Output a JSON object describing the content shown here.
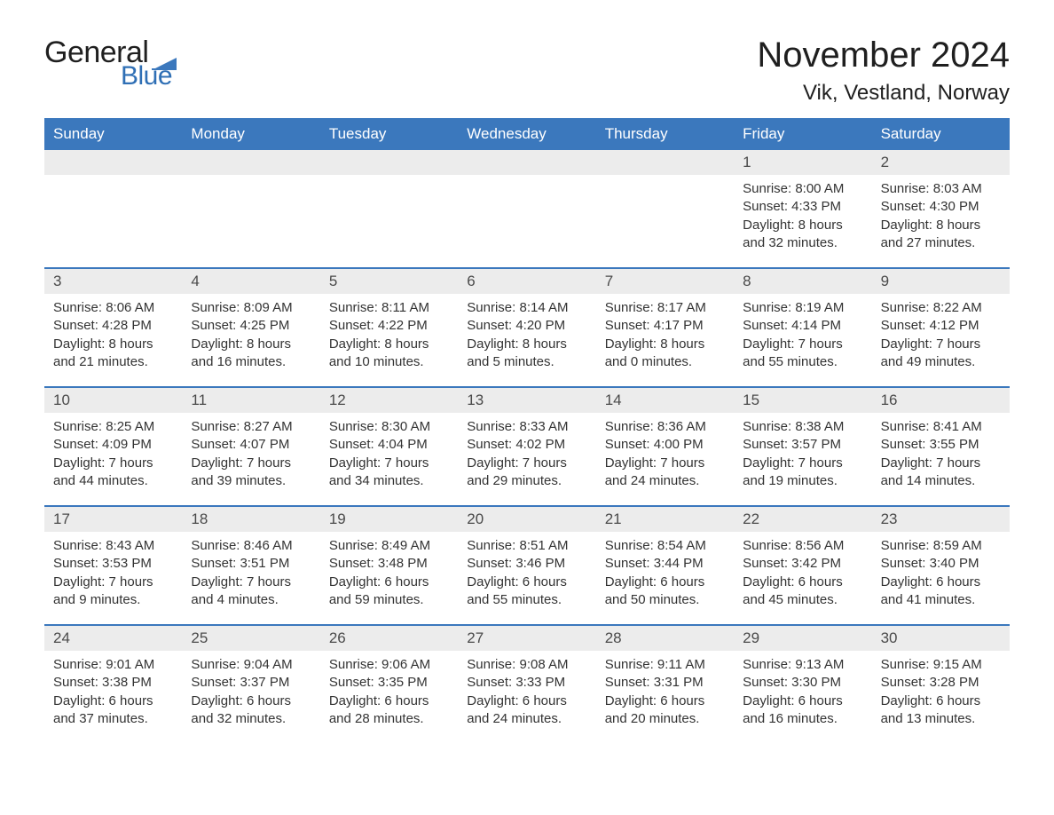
{
  "brand": {
    "line1": "General",
    "line2": "Blue",
    "text_color": "#1f1f1f",
    "accent_color": "#2f6fb5",
    "flag_color": "#3b78bd"
  },
  "title": "November 2024",
  "location": "Vik, Vestland, Norway",
  "colors": {
    "header_bg": "#3b78bd",
    "header_text": "#ffffff",
    "daynum_bg": "#ececec",
    "week_divider": "#3b78bd",
    "body_text": "#333333",
    "background": "#ffffff"
  },
  "typography": {
    "title_fontsize": 40,
    "location_fontsize": 24,
    "weekday_fontsize": 17,
    "daynum_fontsize": 17,
    "body_fontsize": 15
  },
  "weekdays": [
    "Sunday",
    "Monday",
    "Tuesday",
    "Wednesday",
    "Thursday",
    "Friday",
    "Saturday"
  ],
  "labels": {
    "sunrise": "Sunrise:",
    "sunset": "Sunset:",
    "daylight": "Daylight:"
  },
  "weeks": [
    [
      null,
      null,
      null,
      null,
      null,
      {
        "day": "1",
        "sunrise": "8:00 AM",
        "sunset": "4:33 PM",
        "daylight": "8 hours and 32 minutes."
      },
      {
        "day": "2",
        "sunrise": "8:03 AM",
        "sunset": "4:30 PM",
        "daylight": "8 hours and 27 minutes."
      }
    ],
    [
      {
        "day": "3",
        "sunrise": "8:06 AM",
        "sunset": "4:28 PM",
        "daylight": "8 hours and 21 minutes."
      },
      {
        "day": "4",
        "sunrise": "8:09 AM",
        "sunset": "4:25 PM",
        "daylight": "8 hours and 16 minutes."
      },
      {
        "day": "5",
        "sunrise": "8:11 AM",
        "sunset": "4:22 PM",
        "daylight": "8 hours and 10 minutes."
      },
      {
        "day": "6",
        "sunrise": "8:14 AM",
        "sunset": "4:20 PM",
        "daylight": "8 hours and 5 minutes."
      },
      {
        "day": "7",
        "sunrise": "8:17 AM",
        "sunset": "4:17 PM",
        "daylight": "8 hours and 0 minutes."
      },
      {
        "day": "8",
        "sunrise": "8:19 AM",
        "sunset": "4:14 PM",
        "daylight": "7 hours and 55 minutes."
      },
      {
        "day": "9",
        "sunrise": "8:22 AM",
        "sunset": "4:12 PM",
        "daylight": "7 hours and 49 minutes."
      }
    ],
    [
      {
        "day": "10",
        "sunrise": "8:25 AM",
        "sunset": "4:09 PM",
        "daylight": "7 hours and 44 minutes."
      },
      {
        "day": "11",
        "sunrise": "8:27 AM",
        "sunset": "4:07 PM",
        "daylight": "7 hours and 39 minutes."
      },
      {
        "day": "12",
        "sunrise": "8:30 AM",
        "sunset": "4:04 PM",
        "daylight": "7 hours and 34 minutes."
      },
      {
        "day": "13",
        "sunrise": "8:33 AM",
        "sunset": "4:02 PM",
        "daylight": "7 hours and 29 minutes."
      },
      {
        "day": "14",
        "sunrise": "8:36 AM",
        "sunset": "4:00 PM",
        "daylight": "7 hours and 24 minutes."
      },
      {
        "day": "15",
        "sunrise": "8:38 AM",
        "sunset": "3:57 PM",
        "daylight": "7 hours and 19 minutes."
      },
      {
        "day": "16",
        "sunrise": "8:41 AM",
        "sunset": "3:55 PM",
        "daylight": "7 hours and 14 minutes."
      }
    ],
    [
      {
        "day": "17",
        "sunrise": "8:43 AM",
        "sunset": "3:53 PM",
        "daylight": "7 hours and 9 minutes."
      },
      {
        "day": "18",
        "sunrise": "8:46 AM",
        "sunset": "3:51 PM",
        "daylight": "7 hours and 4 minutes."
      },
      {
        "day": "19",
        "sunrise": "8:49 AM",
        "sunset": "3:48 PM",
        "daylight": "6 hours and 59 minutes."
      },
      {
        "day": "20",
        "sunrise": "8:51 AM",
        "sunset": "3:46 PM",
        "daylight": "6 hours and 55 minutes."
      },
      {
        "day": "21",
        "sunrise": "8:54 AM",
        "sunset": "3:44 PM",
        "daylight": "6 hours and 50 minutes."
      },
      {
        "day": "22",
        "sunrise": "8:56 AM",
        "sunset": "3:42 PM",
        "daylight": "6 hours and 45 minutes."
      },
      {
        "day": "23",
        "sunrise": "8:59 AM",
        "sunset": "3:40 PM",
        "daylight": "6 hours and 41 minutes."
      }
    ],
    [
      {
        "day": "24",
        "sunrise": "9:01 AM",
        "sunset": "3:38 PM",
        "daylight": "6 hours and 37 minutes."
      },
      {
        "day": "25",
        "sunrise": "9:04 AM",
        "sunset": "3:37 PM",
        "daylight": "6 hours and 32 minutes."
      },
      {
        "day": "26",
        "sunrise": "9:06 AM",
        "sunset": "3:35 PM",
        "daylight": "6 hours and 28 minutes."
      },
      {
        "day": "27",
        "sunrise": "9:08 AM",
        "sunset": "3:33 PM",
        "daylight": "6 hours and 24 minutes."
      },
      {
        "day": "28",
        "sunrise": "9:11 AM",
        "sunset": "3:31 PM",
        "daylight": "6 hours and 20 minutes."
      },
      {
        "day": "29",
        "sunrise": "9:13 AM",
        "sunset": "3:30 PM",
        "daylight": "6 hours and 16 minutes."
      },
      {
        "day": "30",
        "sunrise": "9:15 AM",
        "sunset": "3:28 PM",
        "daylight": "6 hours and 13 minutes."
      }
    ]
  ]
}
